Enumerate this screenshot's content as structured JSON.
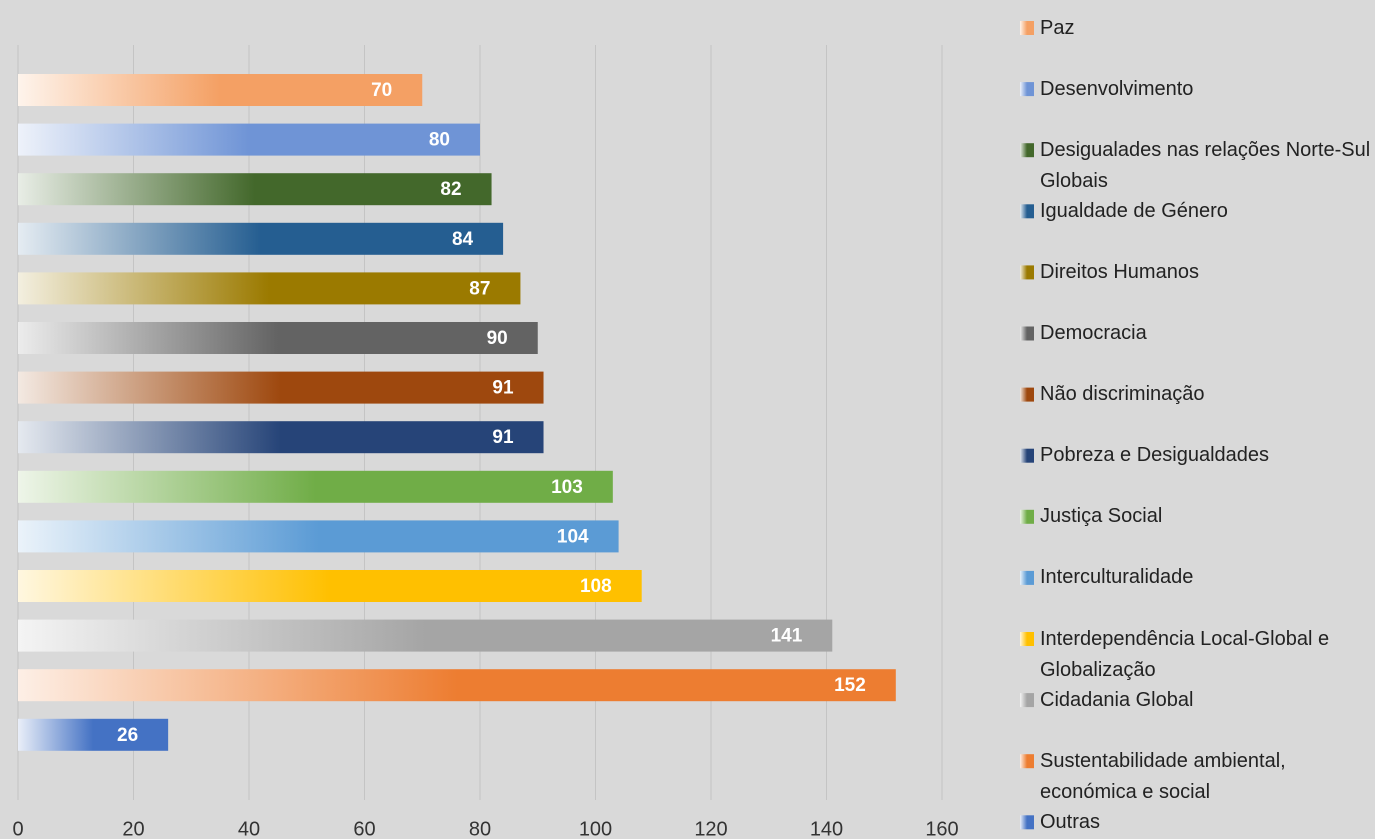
{
  "chart_data": {
    "type": "bar",
    "orientation": "horizontal",
    "categories": [
      "Paz",
      "Desenvolvimento",
      "Desigualades nas relações Norte-Sul Globais",
      "Igualdade de Género",
      "Direitos Humanos",
      "Democracia",
      "Não discriminação",
      "Pobreza e Desigualdades",
      "Justiça Social",
      "Interculturalidade",
      "Interdependência Local-Global e Globalização",
      "Cidadania Global",
      "Sustentabilidade ambiental, económica e social",
      "Outras"
    ],
    "values": [
      70,
      80,
      82,
      84,
      87,
      90,
      91,
      91,
      103,
      104,
      108,
      141,
      152,
      26
    ],
    "colors": [
      "#f4a064",
      "#6f94d6",
      "#43682b",
      "#255e91",
      "#9b7a00",
      "#636363",
      "#9e480e",
      "#264478",
      "#70ad47",
      "#5b9bd5",
      "#ffc000",
      "#a5a5a5",
      "#ed7d31",
      "#4472c4"
    ],
    "xlim": [
      0,
      160
    ],
    "xticks": [
      0,
      20,
      40,
      60,
      80,
      100,
      120,
      140,
      160
    ],
    "grid": true,
    "legend": "right"
  }
}
